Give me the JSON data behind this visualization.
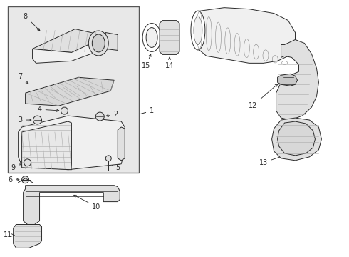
{
  "bg_color": "#ffffff",
  "line_color": "#2a2a2a",
  "fill_light": "#f0f0f0",
  "fill_mid": "#e0e0e0",
  "fill_dark": "#c8c8c8",
  "box_bg": "#ebebeb",
  "lw": 0.7,
  "fs": 7,
  "fig_w": 4.9,
  "fig_h": 3.6,
  "dpi": 100
}
